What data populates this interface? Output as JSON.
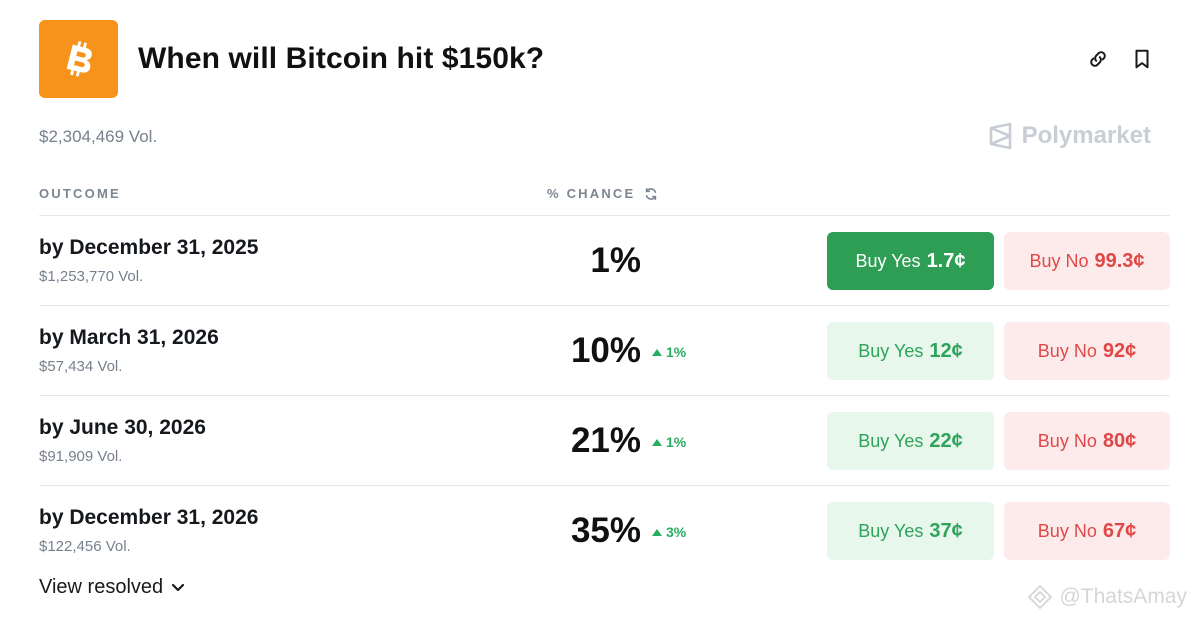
{
  "market": {
    "title": "When will Bitcoin hit $150k?",
    "volume": "$2,304,469 Vol.",
    "logo_icon": "bitcoin-icon",
    "logo_color": "#f7931a"
  },
  "header_actions": {
    "link_icon": "link-icon",
    "bookmark_icon": "bookmark-icon"
  },
  "brand": {
    "name": "Polymarket"
  },
  "table": {
    "col_outcome": "OUTCOME",
    "col_chance": "% CHANCE",
    "rows": [
      {
        "name": "by December 31, 2025",
        "vol": "$1,253,770 Vol.",
        "chance": "1%",
        "delta": "",
        "yes_label": "Buy Yes",
        "yes_price": "1.7¢",
        "no_label": "Buy No",
        "no_price": "99.3¢"
      },
      {
        "name": "by March 31, 2026",
        "vol": "$57,434 Vol.",
        "chance": "10%",
        "delta": "1%",
        "yes_label": "Buy Yes",
        "yes_price": "12¢",
        "no_label": "Buy No",
        "no_price": "92¢"
      },
      {
        "name": "by June 30, 2026",
        "vol": "$91,909 Vol.",
        "chance": "21%",
        "delta": "1%",
        "yes_label": "Buy Yes",
        "yes_price": "22¢",
        "no_label": "Buy No",
        "no_price": "80¢"
      },
      {
        "name": "by December 31, 2026",
        "vol": "$122,456 Vol.",
        "chance": "35%",
        "delta": "3%",
        "yes_label": "Buy Yes",
        "yes_price": "37¢",
        "no_label": "Buy No",
        "no_price": "67¢"
      }
    ]
  },
  "footer": {
    "view_resolved": "View resolved"
  },
  "watermark": {
    "text": "@ThatsAmay"
  },
  "colors": {
    "yes_active": "#2e9e55",
    "yes_bg": "#e7f7ec",
    "no_bg": "#fdebeb",
    "no_text": "#e04848",
    "up": "#27ae60"
  }
}
